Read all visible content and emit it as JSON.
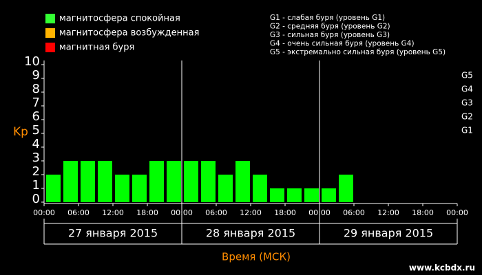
{
  "chart_data": {
    "type": "bar",
    "legend": [
      {
        "label": "магнитосфера спокойная",
        "color": "#33ff33"
      },
      {
        "label": "магнитосфера возбужденная",
        "color": "#ffb400"
      },
      {
        "label": "магнитная буря",
        "color": "#ff0000"
      }
    ],
    "storm_levels": [
      "G1 - слабая буря (уровень G1)",
      "G2 - средняя буря (уровень G2)",
      "G3 - сильная буря (уровень G3)",
      "G4 - очень сильная буря (уровень G4)",
      "G5 - экстремально сильная буря (уровень G5)"
    ],
    "ylabel": "Kp",
    "xlabel": "Время (МСК)",
    "ylim": [
      0,
      10
    ],
    "yticks": [
      0,
      1,
      2,
      3,
      4,
      5,
      6,
      7,
      8,
      9,
      10
    ],
    "y2ticks": [
      {
        "value": 5,
        "label": "G1"
      },
      {
        "value": 6,
        "label": "G2"
      },
      {
        "value": 7,
        "label": "G3"
      },
      {
        "value": 8,
        "label": "G4"
      },
      {
        "value": 9,
        "label": "G5"
      }
    ],
    "x_labels": [
      "00:00",
      "06:00",
      "12:00",
      "18:00",
      "00:00",
      "06:00",
      "12:00",
      "18:00",
      "00:00",
      "06:00",
      "12:00",
      "18:00",
      "00:00"
    ],
    "days": [
      "27 января 2015",
      "28 января 2015",
      "29 января 2015"
    ],
    "color": "#00ff00",
    "values": [
      2,
      3,
      3,
      3,
      2,
      2,
      3,
      3,
      3,
      3,
      2,
      3,
      2,
      1,
      1,
      1,
      1,
      2
    ],
    "watermark": "www.kcbdx.ru"
  }
}
